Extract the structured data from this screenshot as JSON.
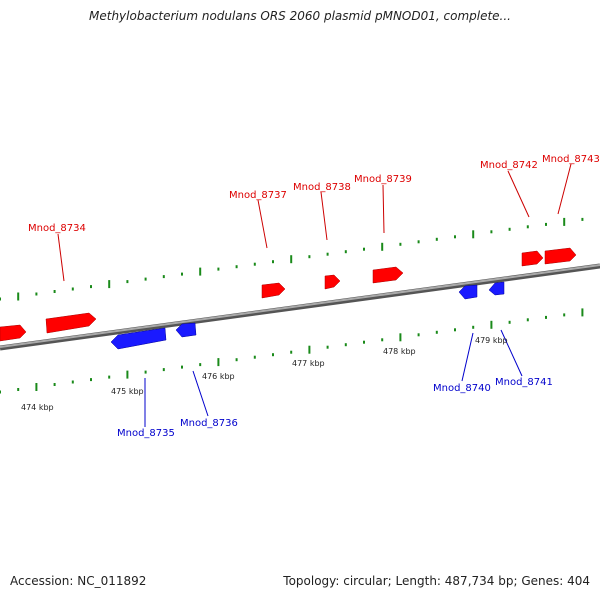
{
  "title": "Methylobacterium nodulans ORS 2060 plasmid pMNOD01, complete...",
  "footer": {
    "accession": "Accession: NC_011892",
    "summary": "Topology: circular; Length: 487,734 bp; Genes: 404"
  },
  "colors": {
    "forward_gene": "#ff0000",
    "reverse_gene": "#1a1aff",
    "backbone": "#777777",
    "tick": "#1a8a1a"
  },
  "scale": {
    "ticks": [
      "474 kbp",
      "475 kbp",
      "476 kbp",
      "477 kbp",
      "478 kbp",
      "479 kbp"
    ]
  },
  "genes": [
    {
      "name": "Mnod_8734",
      "strand": "forward"
    },
    {
      "name": "Mnod_8735",
      "strand": "reverse"
    },
    {
      "name": "Mnod_8736",
      "strand": "reverse"
    },
    {
      "name": "Mnod_8737",
      "strand": "forward"
    },
    {
      "name": "Mnod_8738",
      "strand": "forward"
    },
    {
      "name": "Mnod_8739",
      "strand": "forward"
    },
    {
      "name": "Mnod_8740",
      "strand": "reverse"
    },
    {
      "name": "Mnod_8741",
      "strand": "reverse"
    },
    {
      "name": "Mnod_8742",
      "strand": "forward"
    },
    {
      "name": "Mnod_8743",
      "strand": "forward"
    }
  ]
}
